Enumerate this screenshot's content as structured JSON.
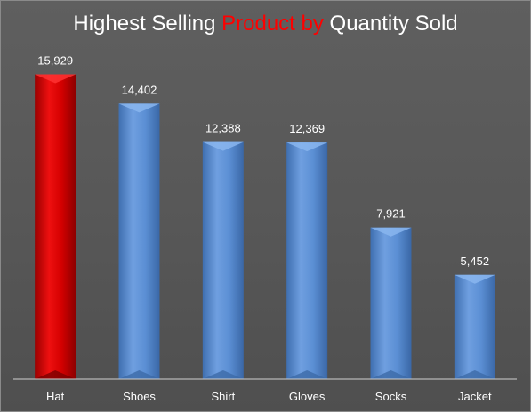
{
  "chart_data": {
    "type": "bar",
    "title_parts": [
      {
        "text": "Highest Selling ",
        "color": "#ffffff"
      },
      {
        "text": "Product by",
        "color": "#ff0000"
      },
      {
        "text": " Quantity Sold",
        "color": "#ffffff"
      }
    ],
    "categories": [
      "Hat",
      "Shoes",
      "Shirt",
      "Gloves",
      "Socks",
      "Jacket"
    ],
    "values": [
      15929,
      14402,
      12388,
      12369,
      7921,
      5452
    ],
    "data_labels": [
      "15,929",
      "14,402",
      "12,388",
      "12,369",
      "7,921",
      "5,452"
    ],
    "highlight_category": "Hat",
    "highlight_color": "#d40000",
    "bar_color": "#5b8fd4",
    "background_color": "#555555",
    "ylim": [
      0,
      18000
    ],
    "grid": false,
    "legend": "none",
    "xlabel": "",
    "ylabel": ""
  }
}
